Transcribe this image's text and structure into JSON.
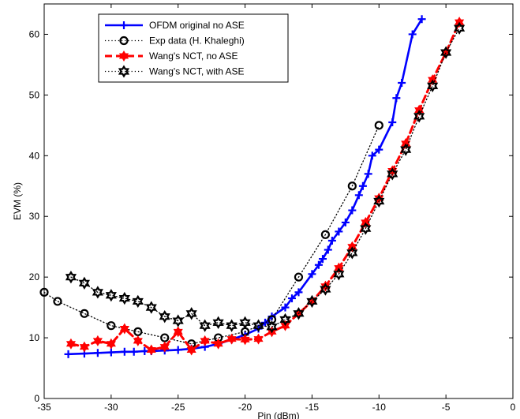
{
  "chart_data": {
    "type": "line",
    "xlabel": "Pin (dBm)",
    "ylabel": "EVM (%)",
    "xlim": [
      -35,
      0
    ],
    "ylim": [
      0,
      65
    ],
    "xticks": [
      -35,
      -30,
      -25,
      -20,
      -15,
      -10,
      -5,
      0
    ],
    "yticks": [
      0,
      10,
      20,
      30,
      40,
      50,
      60
    ],
    "grid": false,
    "legend_position": "top-left",
    "series": [
      {
        "name": "OFDM original no ASE",
        "color": "#0000ff",
        "line_style": "solid",
        "marker": "plus",
        "x": [
          -33.2,
          -32,
          -31,
          -30,
          -29,
          -28.3,
          -27.5,
          -27,
          -26,
          -25,
          -24,
          -23,
          -22,
          -21,
          -20,
          -19,
          -18.5,
          -18,
          -17,
          -16.5,
          -16,
          -15,
          -14.5,
          -14.2,
          -13.8,
          -13.5,
          -13,
          -12.5,
          -12,
          -11.5,
          -11.2,
          -10.8,
          -10.5,
          -10,
          -9,
          -8.7,
          -8.3,
          -7.5,
          -6.8
        ],
        "y": [
          7.3,
          7.4,
          7.5,
          7.6,
          7.7,
          7.7,
          7.8,
          7.8,
          7.9,
          8.0,
          8.2,
          8.5,
          9.0,
          9.7,
          10.5,
          11.5,
          12.5,
          13.5,
          15.0,
          16.5,
          17.5,
          20.5,
          22.0,
          23.0,
          24.5,
          26.0,
          27.5,
          29.0,
          31.0,
          33.5,
          35.0,
          37.0,
          40.0,
          41.0,
          45.5,
          49.5,
          52.0,
          60.0,
          62.5
        ]
      },
      {
        "name": "Exp data (H. Khaleghi)",
        "color": "#000000",
        "line_style": "dotted",
        "marker": "circle",
        "x": [
          -35,
          -34,
          -32,
          -30,
          -28,
          -26,
          -24,
          -22,
          -20,
          -18,
          -16,
          -14,
          -12,
          -10
        ],
        "y": [
          17.5,
          16.0,
          14.0,
          12.0,
          11.0,
          10.0,
          9.0,
          10.0,
          11.0,
          13.0,
          20.0,
          27.0,
          35.0,
          45.0
        ]
      },
      {
        "name": "Wang's NCT, no ASE",
        "color": "#ff0000",
        "line_style": "dashed",
        "marker": "hexagram",
        "x": [
          -33,
          -32,
          -31,
          -30,
          -29,
          -28,
          -27,
          -26,
          -25,
          -24,
          -23,
          -22,
          -21,
          -20,
          -19,
          -18,
          -17,
          -16,
          -15,
          -14,
          -13,
          -12,
          -11,
          -10,
          -9,
          -8,
          -7,
          -6,
          -5,
          -4
        ],
        "y": [
          9.0,
          8.5,
          9.5,
          9.0,
          11.5,
          9.5,
          8.0,
          8.5,
          11.0,
          8.0,
          9.5,
          9.0,
          9.8,
          9.7,
          9.8,
          11.0,
          12.0,
          14.0,
          16.0,
          18.5,
          21.5,
          25.0,
          29.0,
          33.0,
          37.5,
          42.0,
          47.5,
          52.5,
          57.0,
          62.0
        ]
      },
      {
        "name": "Wang's NCT, with ASE",
        "color": "#000000",
        "line_style": "dotted",
        "marker": "hexagram",
        "x": [
          -33,
          -32,
          -31,
          -30,
          -29,
          -28,
          -27,
          -26,
          -25,
          -24,
          -23,
          -22,
          -21,
          -20,
          -19,
          -18,
          -17,
          -16,
          -15,
          -14,
          -13,
          -12,
          -11,
          -10,
          -9,
          -8,
          -7,
          -6,
          -5,
          -4
        ],
        "y": [
          20.0,
          19.0,
          17.5,
          17.0,
          16.5,
          16.0,
          15.0,
          13.5,
          12.8,
          14.0,
          12.0,
          12.5,
          12.0,
          12.5,
          12.0,
          11.8,
          13.0,
          14.0,
          16.0,
          18.0,
          20.5,
          24.0,
          28.0,
          32.5,
          37.0,
          41.0,
          46.5,
          51.5,
          57.0,
          61.0
        ]
      }
    ]
  }
}
